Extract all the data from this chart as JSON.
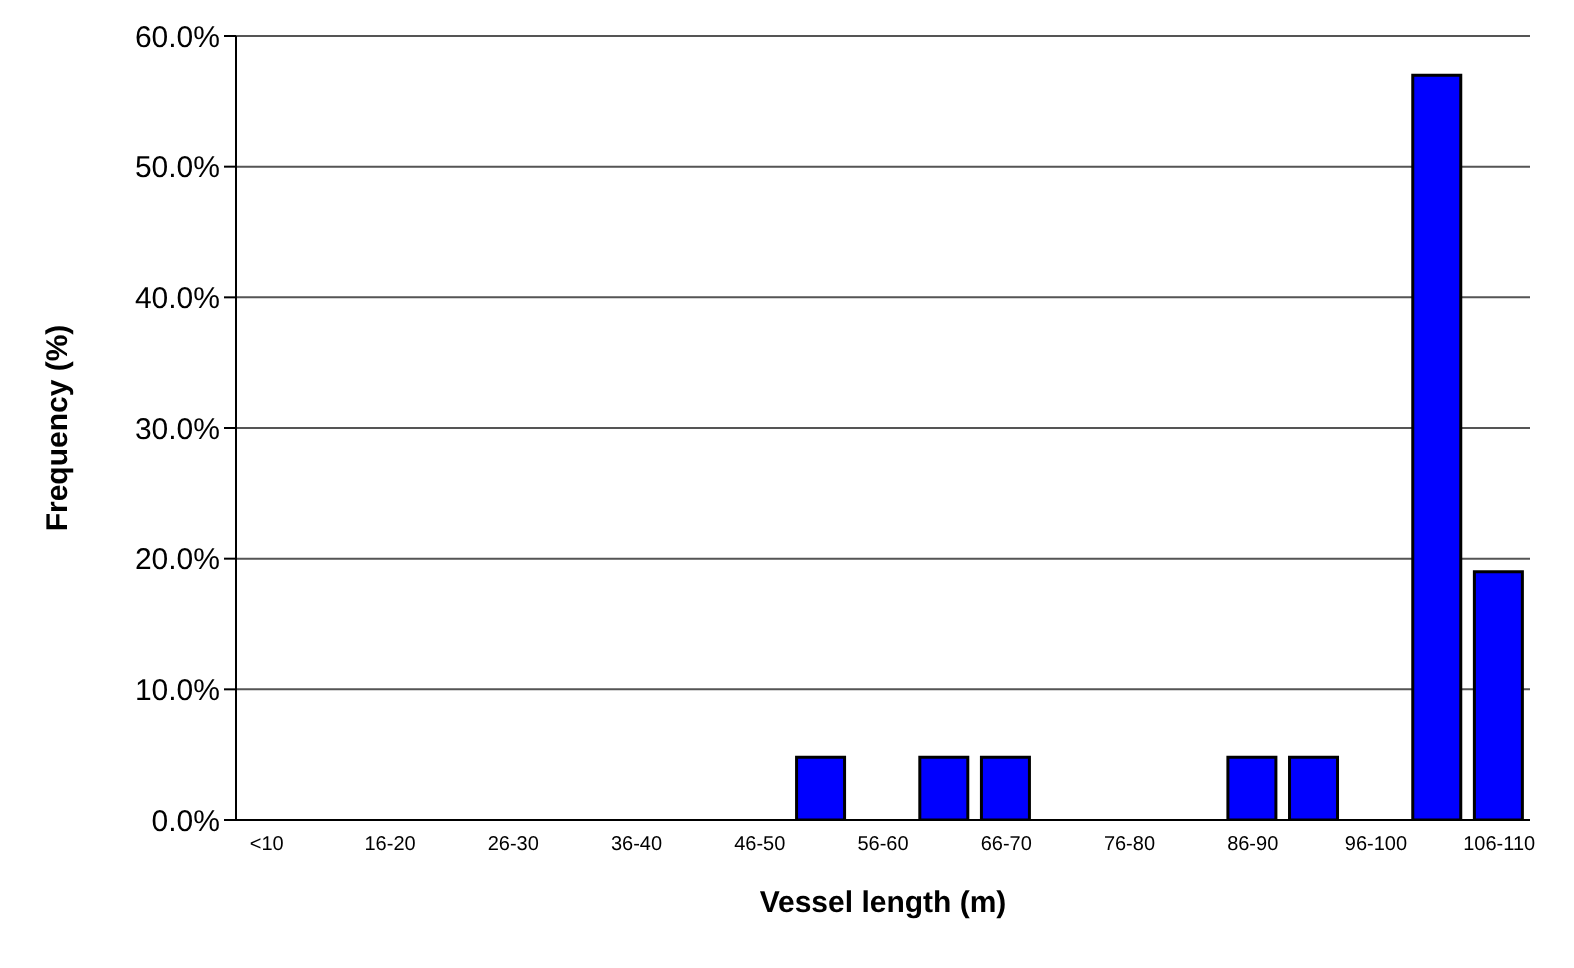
{
  "chart_data": {
    "type": "bar",
    "xlabel": "Vessel length (m)",
    "ylabel": "Frequency (%)",
    "categories": [
      "<10",
      null,
      "16-20",
      null,
      "26-30",
      null,
      "36-40",
      null,
      "46-50",
      null,
      "56-60",
      null,
      "66-70",
      null,
      "76-80",
      null,
      "86-90",
      null,
      "96-100",
      null,
      "106-110"
    ],
    "values": [
      0,
      0,
      0,
      0,
      0,
      0,
      0,
      0,
      0,
      4.8,
      0,
      4.8,
      4.8,
      0,
      0,
      0,
      4.8,
      4.8,
      0,
      57,
      19
    ],
    "color": "#0000ff",
    "ylim": [
      0,
      60
    ],
    "yticks": [
      {
        "value": 0,
        "label": "0.0%"
      },
      {
        "value": 10,
        "label": "10.0%"
      },
      {
        "value": 20,
        "label": "20.0%"
      },
      {
        "value": 30,
        "label": "30.0%"
      },
      {
        "value": 40,
        "label": "40.0%"
      },
      {
        "value": 50,
        "label": "50.0%"
      },
      {
        "value": 60,
        "label": "60.0%"
      }
    ],
    "grid": "y"
  }
}
